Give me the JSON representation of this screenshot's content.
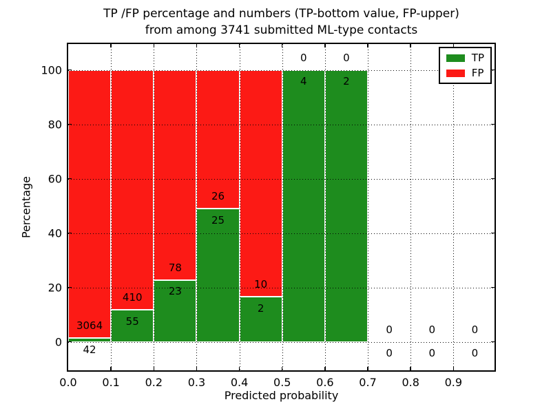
{
  "chart_data": {
    "type": "bar",
    "stacked": true,
    "title_line1": "TP /FP percentage and numbers (TP-bottom value, FP-upper)",
    "title_line2": "from among 3741 submitted ML-type contacts",
    "total_submitted_contacts": 3741,
    "xlabel": "Predicted probability",
    "ylabel": "Percentage",
    "bin_edges": [
      0.0,
      0.1,
      0.2,
      0.3,
      0.4,
      0.5,
      0.6,
      0.7,
      0.8,
      0.9,
      1.0
    ],
    "series": [
      {
        "name": "TP",
        "color": "#1e8c1e",
        "values": [
          42,
          55,
          23,
          25,
          2,
          4,
          2,
          0,
          0,
          0
        ]
      },
      {
        "name": "FP",
        "color": "#fc1a15",
        "values": [
          3064,
          410,
          78,
          26,
          10,
          0,
          0,
          0,
          0,
          0
        ]
      }
    ],
    "bar_unit": "percent_of_bin_total",
    "x_ticks": [
      {
        "value": 0.0,
        "label": "0.0"
      },
      {
        "value": 0.1,
        "label": "0.1"
      },
      {
        "value": 0.2,
        "label": "0.2"
      },
      {
        "value": 0.3,
        "label": "0.3"
      },
      {
        "value": 0.4,
        "label": "0.4"
      },
      {
        "value": 0.5,
        "label": "0.5"
      },
      {
        "value": 0.6,
        "label": "0.6"
      },
      {
        "value": 0.7,
        "label": "0.7"
      },
      {
        "value": 0.8,
        "label": "0.8"
      },
      {
        "value": 0.9,
        "label": "0.9"
      }
    ],
    "y_ticks": [
      {
        "value": 0,
        "label": "0"
      },
      {
        "value": 20,
        "label": "20"
      },
      {
        "value": 40,
        "label": "40"
      },
      {
        "value": 60,
        "label": "60"
      },
      {
        "value": 80,
        "label": "80"
      },
      {
        "value": 100,
        "label": "100"
      }
    ],
    "xlim": [
      0,
      1.0
    ],
    "ylim": [
      -10.5,
      109.5
    ],
    "grid": "dotted",
    "legend_position": "upper right"
  }
}
